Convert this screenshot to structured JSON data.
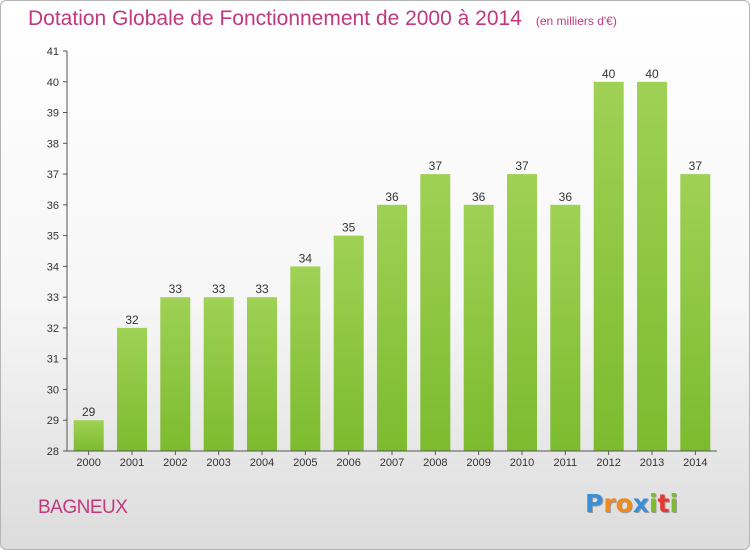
{
  "chart_data": {
    "type": "bar",
    "title": "Dotation Globale de Fonctionnement de 2000 à 2014",
    "subtitle": "(en milliers d'€)",
    "categories": [
      "2000",
      "2001",
      "2002",
      "2003",
      "2004",
      "2005",
      "2006",
      "2007",
      "2008",
      "2009",
      "2010",
      "2011",
      "2012",
      "2013",
      "2014"
    ],
    "values": [
      29,
      32,
      33,
      33,
      33,
      34,
      35,
      36,
      37,
      36,
      37,
      36,
      40,
      40,
      37
    ],
    "ylim": [
      28,
      41
    ],
    "yticks": [
      28,
      29,
      30,
      31,
      32,
      33,
      34,
      35,
      36,
      37,
      38,
      39,
      40,
      41
    ],
    "xlabel": "",
    "ylabel": "",
    "grid": false,
    "bar_color": "#7cbb2e",
    "bar_color_light": "#9fd155"
  },
  "footer": {
    "commune": "BAGNEUX",
    "logo_letters": [
      {
        "ch": "P",
        "color": "#3a8fd6"
      },
      {
        "ch": "r",
        "color": "#f08a1c"
      },
      {
        "ch": "o",
        "color": "#f08a1c"
      },
      {
        "ch": "x",
        "color": "#3a8fd6"
      },
      {
        "ch": "i",
        "color": "#7cbb2e"
      },
      {
        "ch": "t",
        "color": "#e6392f"
      },
      {
        "ch": "i",
        "color": "#7cbb2e"
      }
    ]
  }
}
